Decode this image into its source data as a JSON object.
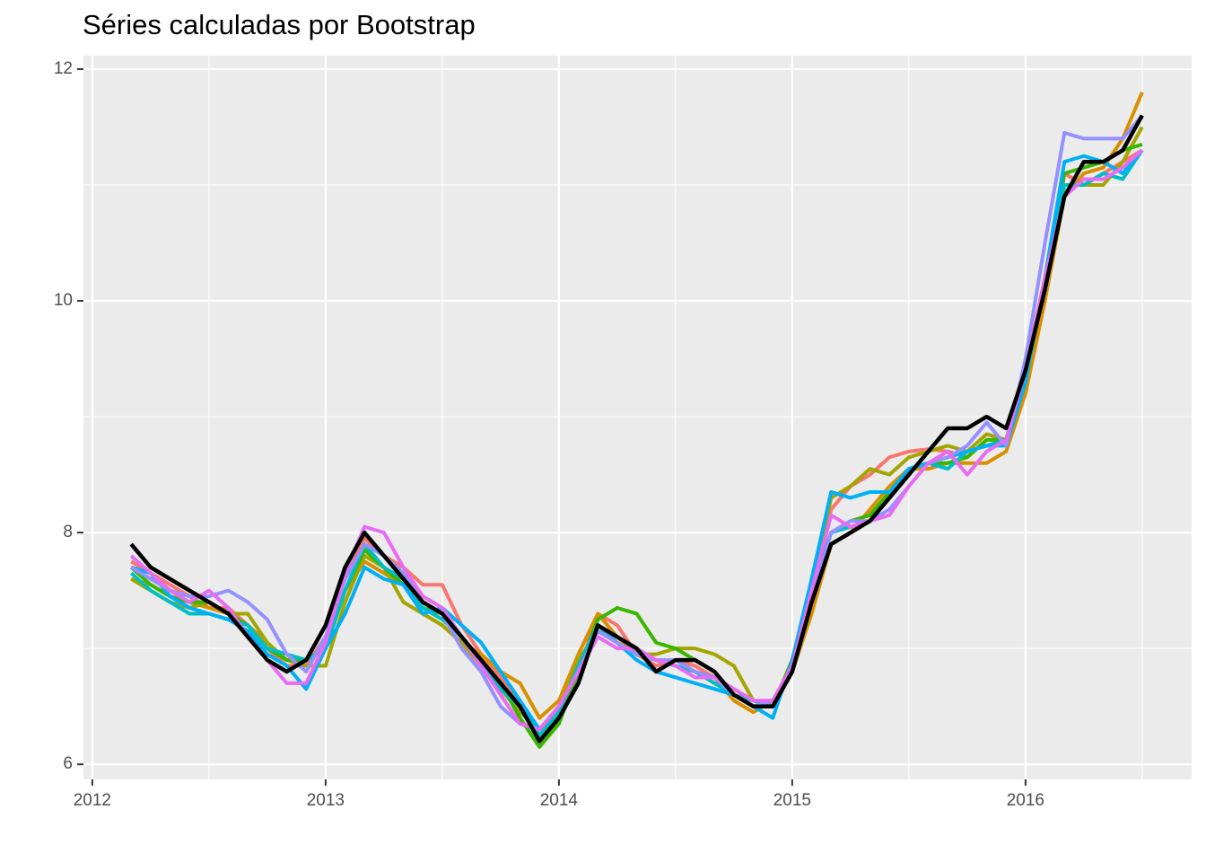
{
  "chart_data": {
    "type": "line",
    "title": "Séries calculadas por Bootstrap",
    "x": [
      2012.1667,
      2012.25,
      2012.3333,
      2012.4167,
      2012.5,
      2012.5833,
      2012.6667,
      2012.75,
      2012.8333,
      2012.9167,
      2013.0,
      2013.0833,
      2013.1667,
      2013.25,
      2013.3333,
      2013.4167,
      2013.5,
      2013.5833,
      2013.6667,
      2013.75,
      2013.8333,
      2013.9167,
      2014.0,
      2014.0833,
      2014.1667,
      2014.25,
      2014.3333,
      2014.4167,
      2014.5,
      2014.5833,
      2014.6667,
      2014.75,
      2014.8333,
      2014.9167,
      2015.0,
      2015.0833,
      2015.1667,
      2015.25,
      2015.3333,
      2015.4167,
      2015.5,
      2015.5833,
      2015.6667,
      2015.75,
      2015.8333,
      2015.9167,
      2016.0,
      2016.0833,
      2016.1667,
      2016.25,
      2016.3333,
      2016.4167,
      2016.5
    ],
    "series": [
      {
        "color": "#F8766D",
        "values": [
          7.75,
          7.65,
          7.55,
          7.45,
          7.35,
          7.35,
          7.2,
          7.0,
          6.85,
          6.85,
          7.1,
          7.6,
          7.95,
          7.8,
          7.7,
          7.55,
          7.55,
          7.2,
          6.95,
          6.75,
          6.5,
          6.25,
          6.45,
          6.8,
          7.3,
          7.2,
          6.95,
          6.85,
          6.9,
          6.85,
          6.75,
          6.65,
          6.55,
          6.5,
          6.9,
          7.5,
          8.2,
          8.4,
          8.5,
          8.65,
          8.7,
          8.72,
          8.7,
          8.65,
          8.8,
          8.8,
          9.3,
          10.0,
          11.1,
          11.0,
          11.1,
          11.2,
          11.3
        ]
      },
      {
        "color": "#D89000",
        "values": [
          7.6,
          7.55,
          7.45,
          7.4,
          7.35,
          7.3,
          7.2,
          7.05,
          6.9,
          6.9,
          7.0,
          7.5,
          7.75,
          7.65,
          7.55,
          7.3,
          7.2,
          7.05,
          6.95,
          6.8,
          6.7,
          6.4,
          6.55,
          6.95,
          7.3,
          7.1,
          6.95,
          6.9,
          6.85,
          6.8,
          6.75,
          6.55,
          6.45,
          6.55,
          6.8,
          7.3,
          7.9,
          8.0,
          8.2,
          8.4,
          8.55,
          8.55,
          8.6,
          8.6,
          8.6,
          8.7,
          9.2,
          10.0,
          10.9,
          11.1,
          11.15,
          11.4,
          11.8
        ]
      },
      {
        "color": "#A3A500",
        "values": [
          7.6,
          7.5,
          7.4,
          7.35,
          7.4,
          7.3,
          7.3,
          7.05,
          6.9,
          6.85,
          6.85,
          7.4,
          7.8,
          7.7,
          7.4,
          7.3,
          7.2,
          7.05,
          6.85,
          6.65,
          6.45,
          6.3,
          6.45,
          6.9,
          7.15,
          7.05,
          6.95,
          6.95,
          7.0,
          7.0,
          6.95,
          6.85,
          6.55,
          6.5,
          6.9,
          7.5,
          8.3,
          8.4,
          8.55,
          8.5,
          8.65,
          8.7,
          8.75,
          8.7,
          8.85,
          8.8,
          9.4,
          10.2,
          11.0,
          11.0,
          11.0,
          11.2,
          11.5
        ]
      },
      {
        "color": "#39B600",
        "values": [
          7.7,
          7.55,
          7.45,
          7.4,
          7.4,
          7.3,
          7.2,
          7.0,
          6.9,
          6.9,
          7.0,
          7.5,
          7.85,
          7.7,
          7.55,
          7.35,
          7.3,
          7.1,
          6.9,
          6.7,
          6.4,
          6.15,
          6.35,
          6.8,
          7.25,
          7.35,
          7.3,
          7.05,
          7.0,
          6.9,
          6.8,
          6.6,
          6.5,
          6.5,
          6.9,
          7.5,
          8.0,
          8.1,
          8.15,
          8.35,
          8.55,
          8.6,
          8.6,
          8.65,
          8.8,
          8.8,
          9.4,
          10.2,
          11.1,
          11.15,
          11.2,
          11.3,
          11.35
        ]
      },
      {
        "color": "#00BFC4",
        "values": [
          7.65,
          7.5,
          7.4,
          7.3,
          7.3,
          7.25,
          7.2,
          7.0,
          6.95,
          6.9,
          7.0,
          7.5,
          7.9,
          7.7,
          7.6,
          7.35,
          7.25,
          7.1,
          6.9,
          6.65,
          6.5,
          6.25,
          6.45,
          6.85,
          7.2,
          7.05,
          6.95,
          6.9,
          6.85,
          6.8,
          6.7,
          6.6,
          6.55,
          6.5,
          6.85,
          7.5,
          8.0,
          8.05,
          8.1,
          8.3,
          8.55,
          8.6,
          8.55,
          8.7,
          8.75,
          8.8,
          9.4,
          10.1,
          11.0,
          11.0,
          11.1,
          11.05,
          11.3
        ]
      },
      {
        "color": "#00B0F6",
        "values": [
          7.7,
          7.65,
          7.45,
          7.35,
          7.3,
          7.25,
          7.15,
          6.95,
          6.85,
          6.65,
          7.0,
          7.3,
          7.7,
          7.6,
          7.55,
          7.3,
          7.35,
          7.2,
          7.05,
          6.8,
          6.55,
          6.3,
          6.5,
          6.8,
          7.15,
          7.05,
          6.9,
          6.8,
          6.75,
          6.7,
          6.65,
          6.6,
          6.5,
          6.4,
          6.9,
          7.6,
          8.35,
          8.3,
          8.35,
          8.35,
          8.55,
          8.6,
          8.65,
          8.7,
          8.75,
          8.75,
          9.3,
          10.2,
          11.2,
          11.25,
          11.2,
          11.1,
          11.3
        ]
      },
      {
        "color": "#9590FF",
        "values": [
          7.7,
          7.6,
          7.5,
          7.45,
          7.45,
          7.5,
          7.4,
          7.25,
          6.95,
          6.8,
          7.1,
          7.6,
          7.9,
          7.8,
          7.65,
          7.4,
          7.3,
          7.0,
          6.8,
          6.5,
          6.35,
          6.3,
          6.5,
          6.8,
          7.15,
          7.05,
          6.95,
          6.9,
          6.9,
          6.8,
          6.75,
          6.6,
          6.5,
          6.55,
          6.85,
          7.4,
          8.0,
          8.1,
          8.1,
          8.2,
          8.4,
          8.6,
          8.65,
          8.75,
          8.95,
          8.75,
          9.5,
          10.5,
          11.45,
          11.4,
          11.4,
          11.4,
          11.6
        ]
      },
      {
        "color": "#E76BF3",
        "values": [
          7.8,
          7.65,
          7.5,
          7.4,
          7.5,
          7.35,
          7.1,
          6.9,
          6.7,
          6.7,
          7.05,
          7.65,
          8.05,
          8.0,
          7.7,
          7.45,
          7.35,
          7.1,
          6.85,
          6.6,
          6.35,
          6.3,
          6.5,
          6.8,
          7.1,
          7.0,
          7.0,
          6.9,
          6.85,
          6.75,
          6.75,
          6.65,
          6.55,
          6.55,
          6.85,
          7.5,
          8.15,
          8.05,
          8.1,
          8.15,
          8.4,
          8.6,
          8.7,
          8.5,
          8.7,
          8.8,
          9.4,
          10.2,
          10.9,
          11.05,
          11.05,
          11.15,
          11.3
        ]
      },
      {
        "color": "#000000",
        "values": [
          7.9,
          7.7,
          7.6,
          7.5,
          7.4,
          7.3,
          7.1,
          6.9,
          6.8,
          6.9,
          7.2,
          7.7,
          8.0,
          7.8,
          7.6,
          7.4,
          7.3,
          7.1,
          6.9,
          6.7,
          6.5,
          6.2,
          6.4,
          6.7,
          7.2,
          7.1,
          7.0,
          6.8,
          6.9,
          6.9,
          6.8,
          6.6,
          6.5,
          6.5,
          6.8,
          7.4,
          7.9,
          8.0,
          8.1,
          8.3,
          8.5,
          8.7,
          8.9,
          8.9,
          9.0,
          8.9,
          9.4,
          10.1,
          10.9,
          11.2,
          11.2,
          11.3,
          11.6
        ]
      }
    ],
    "xlim": [
      2011.962,
      2016.712
    ],
    "xticks": [
      2012,
      2013,
      2014,
      2015,
      2016
    ],
    "ylim": [
      5.87,
      12.116
    ],
    "yticks": [
      6,
      8,
      10,
      12
    ],
    "grid": true
  }
}
